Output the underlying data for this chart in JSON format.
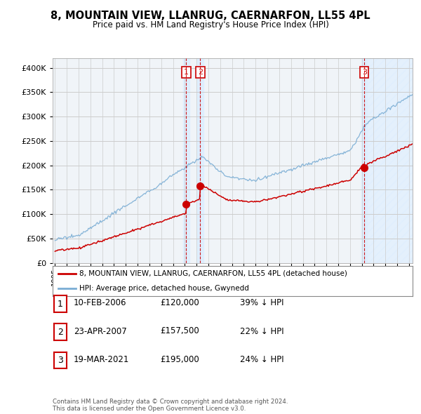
{
  "title": "8, MOUNTAIN VIEW, LLANRUG, CAERNARFON, LL55 4PL",
  "subtitle": "Price paid vs. HM Land Registry's House Price Index (HPI)",
  "legend_line1": "8, MOUNTAIN VIEW, LLANRUG, CAERNARFON, LL55 4PL (detached house)",
  "legend_line2": "HPI: Average price, detached house, Gwynedd",
  "footer": "Contains HM Land Registry data © Crown copyright and database right 2024.\nThis data is licensed under the Open Government Licence v3.0.",
  "transactions": [
    {
      "num": 1,
      "date": "10-FEB-2006",
      "price": "£120,000",
      "pct": "39% ↓ HPI",
      "year": 2006.12
    },
    {
      "num": 2,
      "date": "23-APR-2007",
      "price": "£157,500",
      "pct": "22% ↓ HPI",
      "year": 2007.31
    },
    {
      "num": 3,
      "date": "19-MAR-2021",
      "price": "£195,000",
      "pct": "24% ↓ HPI",
      "year": 2021.21
    }
  ],
  "transaction_prices": [
    120000,
    157500,
    195000
  ],
  "ylim": [
    0,
    420000
  ],
  "xlim_start": 1994.8,
  "xlim_end": 2025.3,
  "red_color": "#cc0000",
  "blue_color": "#7aadd4",
  "vline_color": "#cc0000",
  "shade_color": "#ddeeff",
  "grid_color": "#cccccc",
  "bg_color": "#ffffff"
}
